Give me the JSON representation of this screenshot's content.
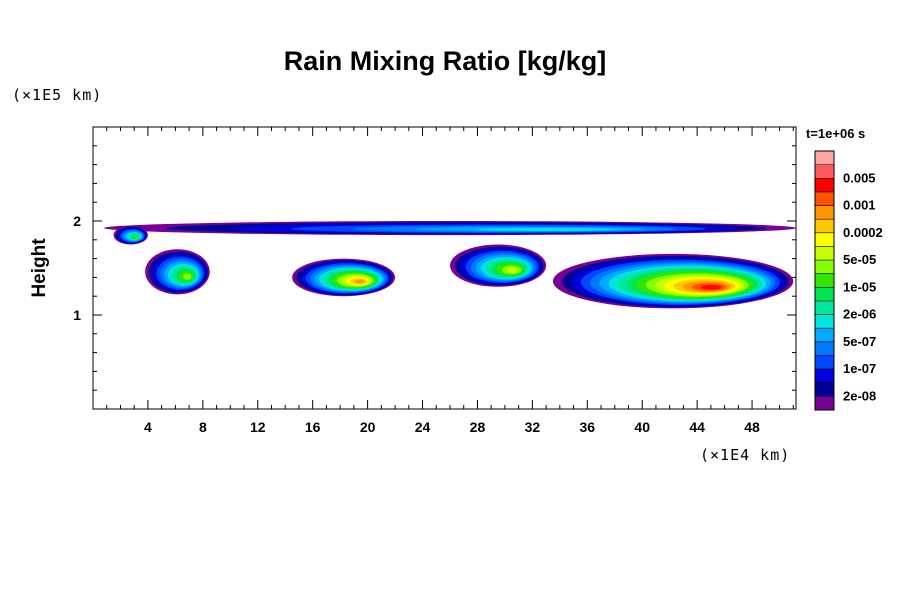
{
  "chart_data": {
    "type": "heatmap",
    "title": "Rain Mixing Ratio [kg/kg]",
    "ylabel": "Height",
    "xlabel": "",
    "x_unit": "(×1E4 km)",
    "y_unit": "(×1E5 km)",
    "time_label": "t=1e+06 s",
    "xlim": [
      0,
      51.2
    ],
    "ylim": [
      0,
      3
    ],
    "x_ticks": [
      4,
      8,
      12,
      16,
      20,
      24,
      28,
      32,
      36,
      40,
      44,
      48
    ],
    "y_ticks": [
      1,
      2
    ],
    "colorbar": {
      "levels": [
        {
          "label": "",
          "color": "#ffa5a5"
        },
        {
          "label": "0.005",
          "color": "#ff5a5a"
        },
        {
          "label": "",
          "color": "#ff0000"
        },
        {
          "label": "0.001",
          "color": "#ff5000"
        },
        {
          "label": "",
          "color": "#ff9600"
        },
        {
          "label": "0.0002",
          "color": "#ffc800"
        },
        {
          "label": "",
          "color": "#ffff00"
        },
        {
          "label": "5e-05",
          "color": "#c8ff00"
        },
        {
          "label": "",
          "color": "#82ff00"
        },
        {
          "label": "1e-05",
          "color": "#32e600"
        },
        {
          "label": "",
          "color": "#00e650"
        },
        {
          "label": "2e-06",
          "color": "#00e69b"
        },
        {
          "label": "",
          "color": "#00e6dc"
        },
        {
          "label": "5e-07",
          "color": "#00aaff"
        },
        {
          "label": "",
          "color": "#0078ff"
        },
        {
          "label": "1e-07",
          "color": "#0046ff"
        },
        {
          "label": "",
          "color": "#0000dc"
        },
        {
          "label": "2e-08",
          "color": "#000096"
        },
        {
          "label": "",
          "color": "#780096"
        }
      ]
    },
    "features": [
      {
        "x": 0.8,
        "x_end": 51.2,
        "y_bottom": 1.85,
        "y_top": 2.0,
        "max_level": 12
      },
      {
        "x": 1.5,
        "x_end": 4.0,
        "y_bottom": 1.75,
        "y_top": 1.95,
        "max_level": 9
      },
      {
        "x": 3.8,
        "x_end": 8.5,
        "y_bottom": 1.22,
        "y_top": 1.7,
        "max_level": 8
      },
      {
        "x": 14.5,
        "x_end": 22.0,
        "y_bottom": 1.2,
        "y_top": 1.6,
        "max_level": 4
      },
      {
        "x": 26.0,
        "x_end": 33.0,
        "y_bottom": 1.3,
        "y_top": 1.75,
        "max_level": 7
      },
      {
        "x": 33.5,
        "x_end": 51.0,
        "y_bottom": 1.07,
        "y_top": 1.65,
        "max_level": 2
      }
    ]
  }
}
